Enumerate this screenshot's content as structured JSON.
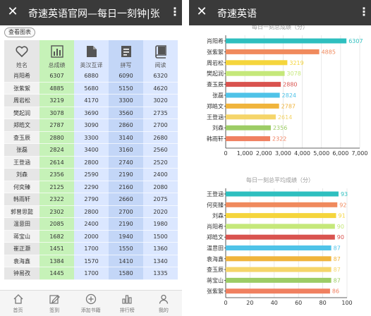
{
  "left": {
    "title": "奇速英语官网—每日一刻钟|张...",
    "chart_button": "查看图表",
    "columns": [
      {
        "label": "姓名",
        "icon": "heart-icon"
      },
      {
        "label": "总成绩",
        "icon": "bar-chart-icon"
      },
      {
        "label": "英汉互译",
        "icon": "document-icon"
      },
      {
        "label": "拼写",
        "icon": "spell-icon"
      },
      {
        "label": "阅读",
        "icon": "book-icon"
      }
    ],
    "rows": [
      {
        "name": "肖阳希",
        "total": "6307",
        "trans": "6880",
        "spell": "6090",
        "read": "6320"
      },
      {
        "name": "张紫絮",
        "total": "4885",
        "trans": "5680",
        "spell": "5150",
        "read": "4620"
      },
      {
        "name": "周岩松",
        "total": "3219",
        "trans": "4170",
        "spell": "3300",
        "read": "3020"
      },
      {
        "name": "樊起润",
        "total": "3078",
        "trans": "3690",
        "spell": "3560",
        "read": "2735"
      },
      {
        "name": "郑皓文",
        "total": "2787",
        "trans": "3090",
        "spell": "2860",
        "read": "2700"
      },
      {
        "name": "查玉辰",
        "total": "2880",
        "trans": "3300",
        "spell": "3140",
        "read": "2680"
      },
      {
        "name": "张磊",
        "total": "2824",
        "trans": "3400",
        "spell": "3160",
        "read": "2560"
      },
      {
        "name": "王登涵",
        "total": "2614",
        "trans": "2800",
        "spell": "2740",
        "read": "2520"
      },
      {
        "name": "刘森",
        "total": "2356",
        "trans": "2590",
        "spell": "2190",
        "read": "2400"
      },
      {
        "name": "何奕臻",
        "total": "2125",
        "trans": "2290",
        "spell": "2160",
        "read": "2080"
      },
      {
        "name": "韩雨轩",
        "total": "2322",
        "trans": "2790",
        "spell": "2660",
        "read": "2075"
      },
      {
        "name": "郭曾思懿",
        "total": "2302",
        "trans": "2800",
        "spell": "2700",
        "read": "2020"
      },
      {
        "name": "温意田",
        "total": "2085",
        "trans": "2400",
        "spell": "2190",
        "read": "1980"
      },
      {
        "name": "蒋宝山",
        "total": "1682",
        "trans": "2000",
        "spell": "1940",
        "read": "1500"
      },
      {
        "name": "崔正灏",
        "total": "1451",
        "trans": "1700",
        "spell": "1550",
        "read": "1360"
      },
      {
        "name": "袁海鑫",
        "total": "1384",
        "trans": "1570",
        "spell": "1410",
        "read": "1340"
      },
      {
        "name": "钟易孜",
        "total": "1445",
        "trans": "1700",
        "spell": "1580",
        "read": "1335"
      }
    ],
    "nav": [
      {
        "label": "首页",
        "icon": "home-icon"
      },
      {
        "label": "签到",
        "icon": "edit-icon"
      },
      {
        "label": "添加书籍",
        "icon": "add-circle-icon"
      },
      {
        "label": "排行榜",
        "icon": "ranking-icon"
      },
      {
        "label": "我的",
        "icon": "user-icon"
      }
    ],
    "colors": {
      "name_col": "#e6e6e6",
      "total_col": "#c6f2b8",
      "alt_col_a": "#dbe7ff",
      "alt_col_b": "#c3d6f7",
      "row_alt": "#f2f2f2"
    }
  },
  "right": {
    "title": "奇速英语",
    "chart_data": [
      {
        "type": "bar",
        "orientation": "horizontal",
        "title": "每日一刻总成绩（分）",
        "categories": [
          "肖阳希",
          "张紫絮",
          "周岩松",
          "樊起润",
          "查玉辰",
          "张磊",
          "郑皓文",
          "王登涵",
          "刘森",
          "韩雨轩"
        ],
        "values": [
          6307,
          4885,
          3219,
          3078,
          2880,
          2824,
          2787,
          2614,
          2356,
          2322
        ],
        "colors": [
          "#2ebfbf",
          "#f08a5d",
          "#f5d53c",
          "#c5e87a",
          "#d9534f",
          "#4fc3e8",
          "#f0b43c",
          "#f5d56a",
          "#9ccc65",
          "#f08060"
        ],
        "xlim": [
          0,
          7000
        ],
        "xticks": [
          "0",
          "1,000",
          "2,000",
          "3,000",
          "4,000",
          "5,000",
          "6,000",
          "7,000"
        ],
        "grid": true
      },
      {
        "type": "bar",
        "orientation": "horizontal",
        "title": "每日一刻总平均成绩（分）",
        "categories": [
          "王登涵",
          "何奕臻",
          "刘森",
          "肖阳希",
          "郑皓文",
          "温意田",
          "袁海鑫",
          "查玉辰",
          "蒋宝山",
          "张紫絮"
        ],
        "values": [
          93,
          92,
          91,
          90,
          90,
          87,
          87,
          87,
          87,
          86
        ],
        "colors": [
          "#2ebfbf",
          "#f08a5d",
          "#f5d53c",
          "#c5e87a",
          "#d9534f",
          "#4fc3e8",
          "#f0b43c",
          "#f5d56a",
          "#9ccc65",
          "#f08060"
        ],
        "xlim": [
          0,
          100
        ],
        "xticks": [
          "0",
          "20",
          "40",
          "60",
          "80",
          "100"
        ],
        "grid": true
      }
    ]
  }
}
